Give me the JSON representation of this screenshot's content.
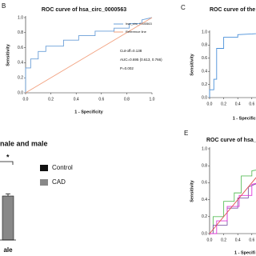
{
  "chart_data": [
    {
      "type": "line",
      "panel_label": "B",
      "title": "ROC curve of hsa_circ_0000563",
      "x_label": "1 - Specificity",
      "y_label": "Sensitivity",
      "xlim": [
        0,
        1
      ],
      "ylim": [
        0,
        1
      ],
      "xticks": [
        {
          "value": 0,
          "label": "0.0"
        },
        0.2,
        0.4,
        0.6,
        0.8,
        {
          "value": 1,
          "label": "1.0"
        }
      ],
      "yticks": [
        {
          "value": 0,
          "label": "0.0"
        },
        0.2,
        0.4,
        0.6,
        0.8,
        {
          "value": 1,
          "label": "1.0"
        }
      ],
      "legend": "upper right",
      "annotations": [
        "Cut-off=0.138",
        "AUC=0.695 (0.613, 0.766)",
        "P=0.002"
      ],
      "series": [
        {
          "name": "hsa_circ_0000563",
          "color": "#6a9fd8",
          "x": [
            0,
            0,
            0.04,
            0.04,
            0.1,
            0.1,
            0.16,
            0.16,
            0.3,
            0.3,
            0.42,
            0.42,
            0.55,
            0.55,
            0.7,
            0.7,
            0.82,
            0.82,
            0.92,
            0.92,
            1
          ],
          "values": [
            0,
            0.33,
            0.33,
            0.45,
            0.45,
            0.55,
            0.55,
            0.62,
            0.62,
            0.7,
            0.7,
            0.76,
            0.76,
            0.82,
            0.82,
            0.86,
            0.86,
            0.92,
            0.92,
            0.97,
            1
          ]
        },
        {
          "name": "Reference line",
          "color": "#f2a07e",
          "x": [
            0,
            1
          ],
          "values": [
            0,
            1
          ]
        }
      ]
    },
    {
      "type": "line",
      "panel_label": "C",
      "title": "ROC curve of  the circRNA",
      "x_label": "1 - Specifici",
      "y_label": "Sensitivity",
      "xlim": [
        0,
        1
      ],
      "ylim": [
        0,
        1
      ],
      "xticks": [
        {
          "value": 0,
          "label": "0.0"
        },
        0.2,
        0.4,
        0.6
      ],
      "yticks": [
        {
          "value": 0,
          "label": "0.0"
        },
        0.2,
        0.4,
        0.6,
        0.8,
        {
          "value": 1,
          "label": "1.0"
        }
      ],
      "series": [
        {
          "color": "#4a90d9",
          "x": [
            0,
            0,
            0.06,
            0.06,
            0.1,
            0.1,
            0.2,
            0.2,
            0.4,
            0.4,
            0.6,
            1
          ],
          "values": [
            0,
            0.12,
            0.12,
            0.28,
            0.28,
            0.75,
            0.75,
            0.92,
            0.92,
            0.96,
            0.97,
            1
          ]
        }
      ]
    },
    {
      "type": "bar",
      "title": "nale and male",
      "categories": [
        "ale"
      ],
      "ylim": [
        0,
        1.2
      ],
      "annotations": [
        "*"
      ],
      "legend": "upper right",
      "series": [
        {
          "name": "Control",
          "color": "#111111",
          "values": [
            null
          ]
        },
        {
          "name": "CAD",
          "color": "#888888",
          "values": [
            1
          ],
          "errors": [
            0.05
          ]
        }
      ]
    },
    {
      "type": "line",
      "panel_label": "E",
      "title": "ROC curve of hsa_circ_0000",
      "x_label": "1 - Specifi",
      "y_label": "Sensitivity",
      "xlim": [
        0,
        1
      ],
      "ylim": [
        0,
        1
      ],
      "xticks": [
        {
          "value": 0,
          "label": "0.0"
        },
        0.2,
        0.4,
        0.6,
        0.8
      ],
      "yticks": [
        {
          "value": 0,
          "label": "0.0"
        },
        0.2,
        0.4,
        0.6,
        0.8,
        {
          "value": 1,
          "label": "1.0"
        }
      ],
      "series": [
        {
          "color": "#5cbf5c",
          "x": [
            0,
            0.05,
            0.05,
            0.2,
            0.2,
            0.35,
            0.35,
            0.45,
            0.45,
            0.6,
            0.6,
            1
          ],
          "values": [
            0,
            0,
            0.2,
            0.2,
            0.38,
            0.38,
            0.48,
            0.48,
            0.68,
            0.68,
            0.74,
            0.8
          ]
        },
        {
          "color": "#7e5ea8",
          "x": [
            0,
            0.05,
            0.05,
            0.25,
            0.25,
            0.4,
            0.4,
            0.55,
            0.55,
            1
          ],
          "values": [
            0,
            0,
            0.1,
            0.1,
            0.3,
            0.3,
            0.42,
            0.42,
            0.55,
            0.7
          ]
        },
        {
          "color": "#e03ad8",
          "x": [
            0,
            0.1,
            0.1,
            0.25,
            0.25,
            0.42,
            0.42,
            0.6,
            0.6,
            1
          ],
          "values": [
            0,
            0,
            0.15,
            0.15,
            0.32,
            0.32,
            0.45,
            0.45,
            0.58,
            0.66
          ]
        },
        {
          "color": "#e05050",
          "x": [
            0,
            1
          ],
          "values": [
            0,
            1
          ]
        }
      ]
    }
  ]
}
